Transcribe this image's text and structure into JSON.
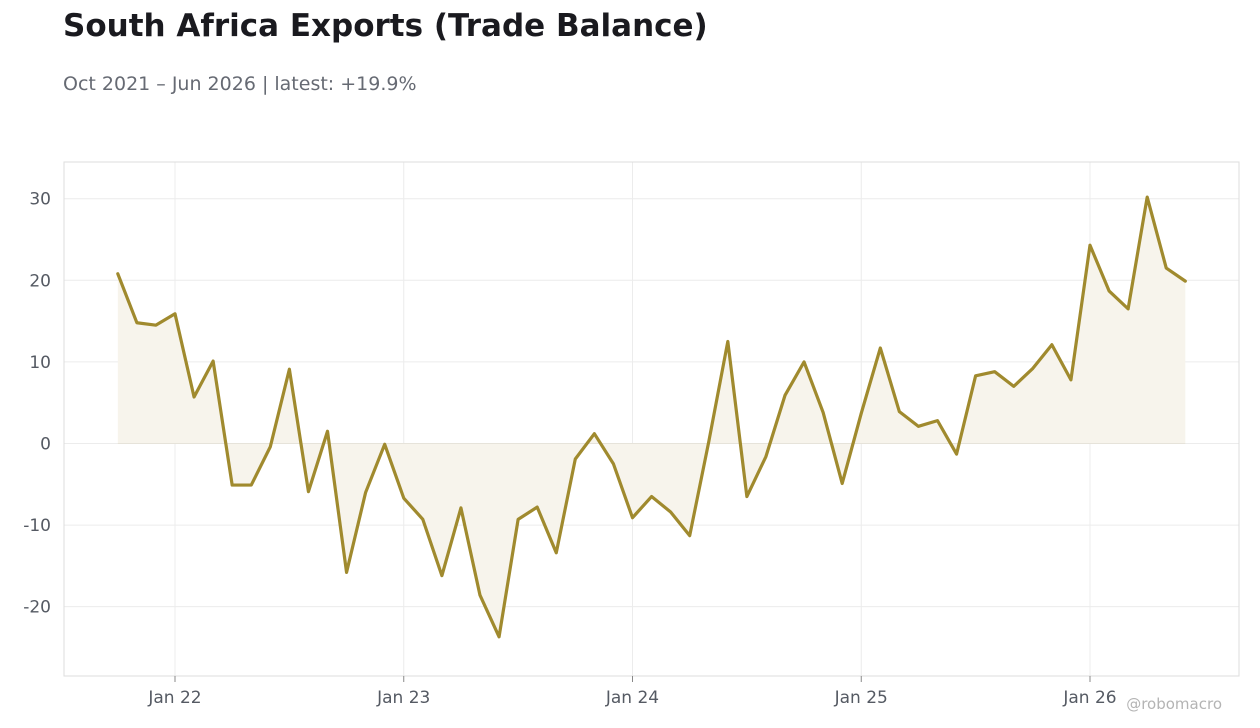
{
  "header": {
    "title": "South Africa Exports (Trade Balance)",
    "subtitle": "Oct 2021 – Jun 2026 | latest: +19.9%"
  },
  "watermark": "@robomacro",
  "colors": {
    "line": "#a08a2e",
    "fill": "#f7f4ec",
    "grid": "#ececec",
    "frame": "#dddddd",
    "zero_line": "#e6e3da"
  },
  "chart_data": {
    "type": "area",
    "title": "South Africa Exports (Trade Balance)",
    "xlabel": "",
    "ylabel": "",
    "ylim": [
      -28.5,
      34.5
    ],
    "yticks": [
      30,
      20,
      10,
      0,
      -10,
      -20
    ],
    "ytick_labels": [
      "30",
      "20",
      "10",
      "0",
      "-10",
      "-20"
    ],
    "xticks": [
      {
        "date": "2022-01",
        "label": "Jan 22"
      },
      {
        "date": "2023-01",
        "label": "Jan 23"
      },
      {
        "date": "2024-01",
        "label": "Jan 24"
      },
      {
        "date": "2025-01",
        "label": "Jan 25"
      },
      {
        "date": "2026-01",
        "label": "Jan 26"
      }
    ],
    "grid": true,
    "legend": "none",
    "series": [
      {
        "x": [
          "2021-10",
          "2021-11",
          "2021-12",
          "2022-01",
          "2022-02",
          "2022-03",
          "2022-04",
          "2022-05",
          "2022-06",
          "2022-07",
          "2022-08",
          "2022-09",
          "2022-10",
          "2022-11",
          "2022-12",
          "2023-01",
          "2023-02",
          "2023-03",
          "2023-04",
          "2023-05",
          "2023-06",
          "2023-07",
          "2023-08",
          "2023-09",
          "2023-10",
          "2023-11",
          "2023-12",
          "2024-01",
          "2024-02",
          "2024-03",
          "2024-04",
          "2024-05",
          "2024-06",
          "2024-07",
          "2024-08",
          "2024-09",
          "2024-10",
          "2024-11",
          "2024-12",
          "2025-01",
          "2025-02",
          "2025-03",
          "2025-04",
          "2025-05",
          "2025-06",
          "2025-07",
          "2025-08",
          "2025-09",
          "2025-10",
          "2025-11",
          "2025-12",
          "2026-01",
          "2026-02",
          "2026-03",
          "2026-04",
          "2026-05",
          "2026-06"
        ],
        "y": [
          20.8,
          14.8,
          14.5,
          15.9,
          5.7,
          10.1,
          -5.1,
          -5.1,
          -0.4,
          9.1,
          -5.9,
          1.5,
          -15.8,
          -6.0,
          -0.1,
          -6.7,
          -9.3,
          -16.2,
          -7.9,
          -18.6,
          -23.7,
          -9.3,
          -7.8,
          -13.4,
          -1.9,
          1.2,
          -2.5,
          -9.1,
          -6.5,
          -8.4,
          -11.3,
          0.2,
          12.5,
          -6.5,
          -1.6,
          5.9,
          10.0,
          3.8,
          -4.9,
          3.7,
          11.7,
          3.9,
          2.1,
          2.8,
          -1.3,
          8.3,
          8.8,
          7.0,
          9.2,
          12.1,
          7.8,
          24.3,
          18.7,
          16.5,
          30.2,
          21.5,
          19.9
        ]
      }
    ]
  }
}
